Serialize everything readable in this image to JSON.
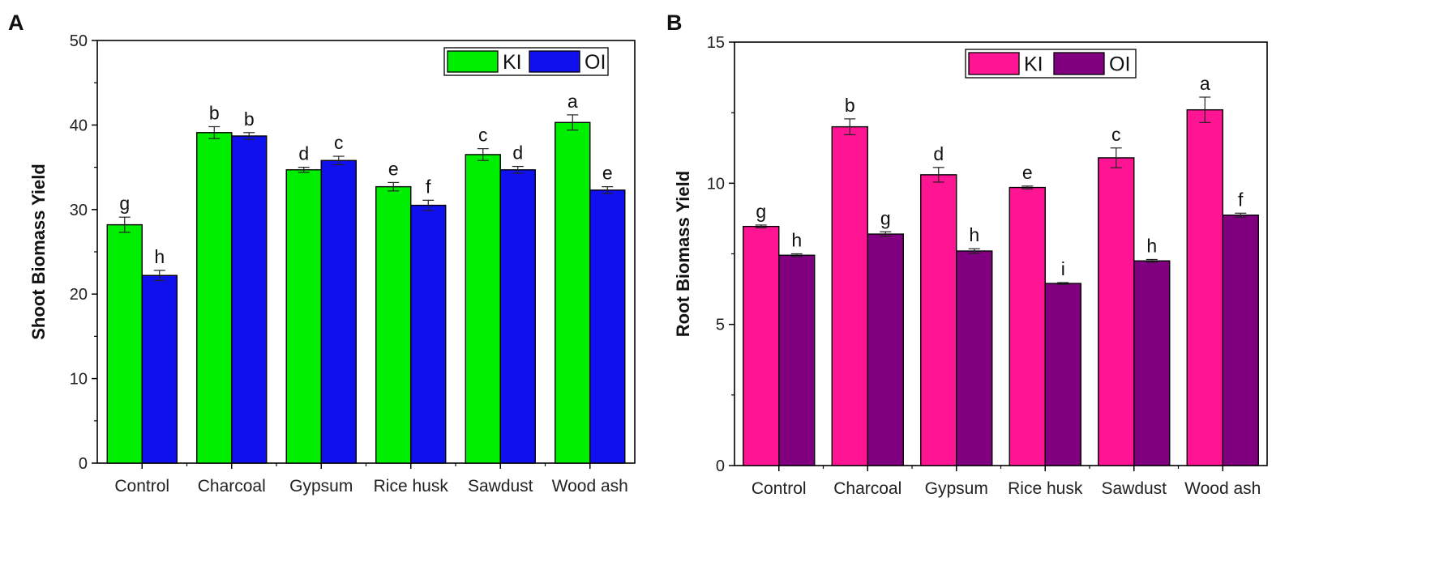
{
  "chart_data": [
    {
      "type": "bar",
      "panel": "A",
      "ylabel": "Shoot Biomass Yield",
      "xlabel": "",
      "ylim": [
        0,
        50
      ],
      "yticks": [
        0,
        10,
        20,
        30,
        40,
        50
      ],
      "legend_position": "top-right",
      "categories": [
        "Control",
        "Charcoal",
        "Gypsum",
        "Rice husk",
        "Sawdust",
        "Wood ash"
      ],
      "series": [
        {
          "name": "KI",
          "color": "#00ee00",
          "values": [
            28.2,
            39.1,
            34.7,
            32.7,
            36.5,
            40.3
          ],
          "errors": [
            0.9,
            0.7,
            0.3,
            0.5,
            0.7,
            0.9
          ],
          "letters": [
            "g",
            "b",
            "d",
            "e",
            "c",
            "a"
          ]
        },
        {
          "name": "OI",
          "color": "#1010ee",
          "values": [
            22.2,
            38.7,
            35.8,
            30.5,
            34.7,
            32.3
          ],
          "errors": [
            0.6,
            0.4,
            0.5,
            0.6,
            0.4,
            0.4
          ],
          "letters": [
            "h",
            "b",
            "c",
            "f",
            "d",
            "e"
          ]
        }
      ]
    },
    {
      "type": "bar",
      "panel": "B",
      "ylabel": "Root Biomass Yield",
      "xlabel": "",
      "ylim": [
        0,
        15
      ],
      "yticks": [
        0,
        5,
        10,
        15
      ],
      "legend_position": "top-right",
      "categories": [
        "Control",
        "Charcoal",
        "Gypsum",
        "Rice husk",
        "Sawdust",
        "Wood ash"
      ],
      "series": [
        {
          "name": "KI",
          "color": "#ff1493",
          "values": [
            8.47,
            12.0,
            10.3,
            9.85,
            10.9,
            12.6
          ],
          "errors": [
            0.05,
            0.28,
            0.26,
            0.05,
            0.35,
            0.45
          ],
          "letters": [
            "g",
            "b",
            "d",
            "e",
            "c",
            "a"
          ]
        },
        {
          "name": "OI",
          "color": "#800080",
          "values": [
            7.45,
            8.2,
            7.6,
            6.45,
            7.25,
            8.87
          ],
          "errors": [
            0.05,
            0.08,
            0.08,
            0.03,
            0.05,
            0.07
          ],
          "letters": [
            "h",
            "g",
            "h",
            "i",
            "h",
            "f"
          ]
        }
      ]
    }
  ]
}
